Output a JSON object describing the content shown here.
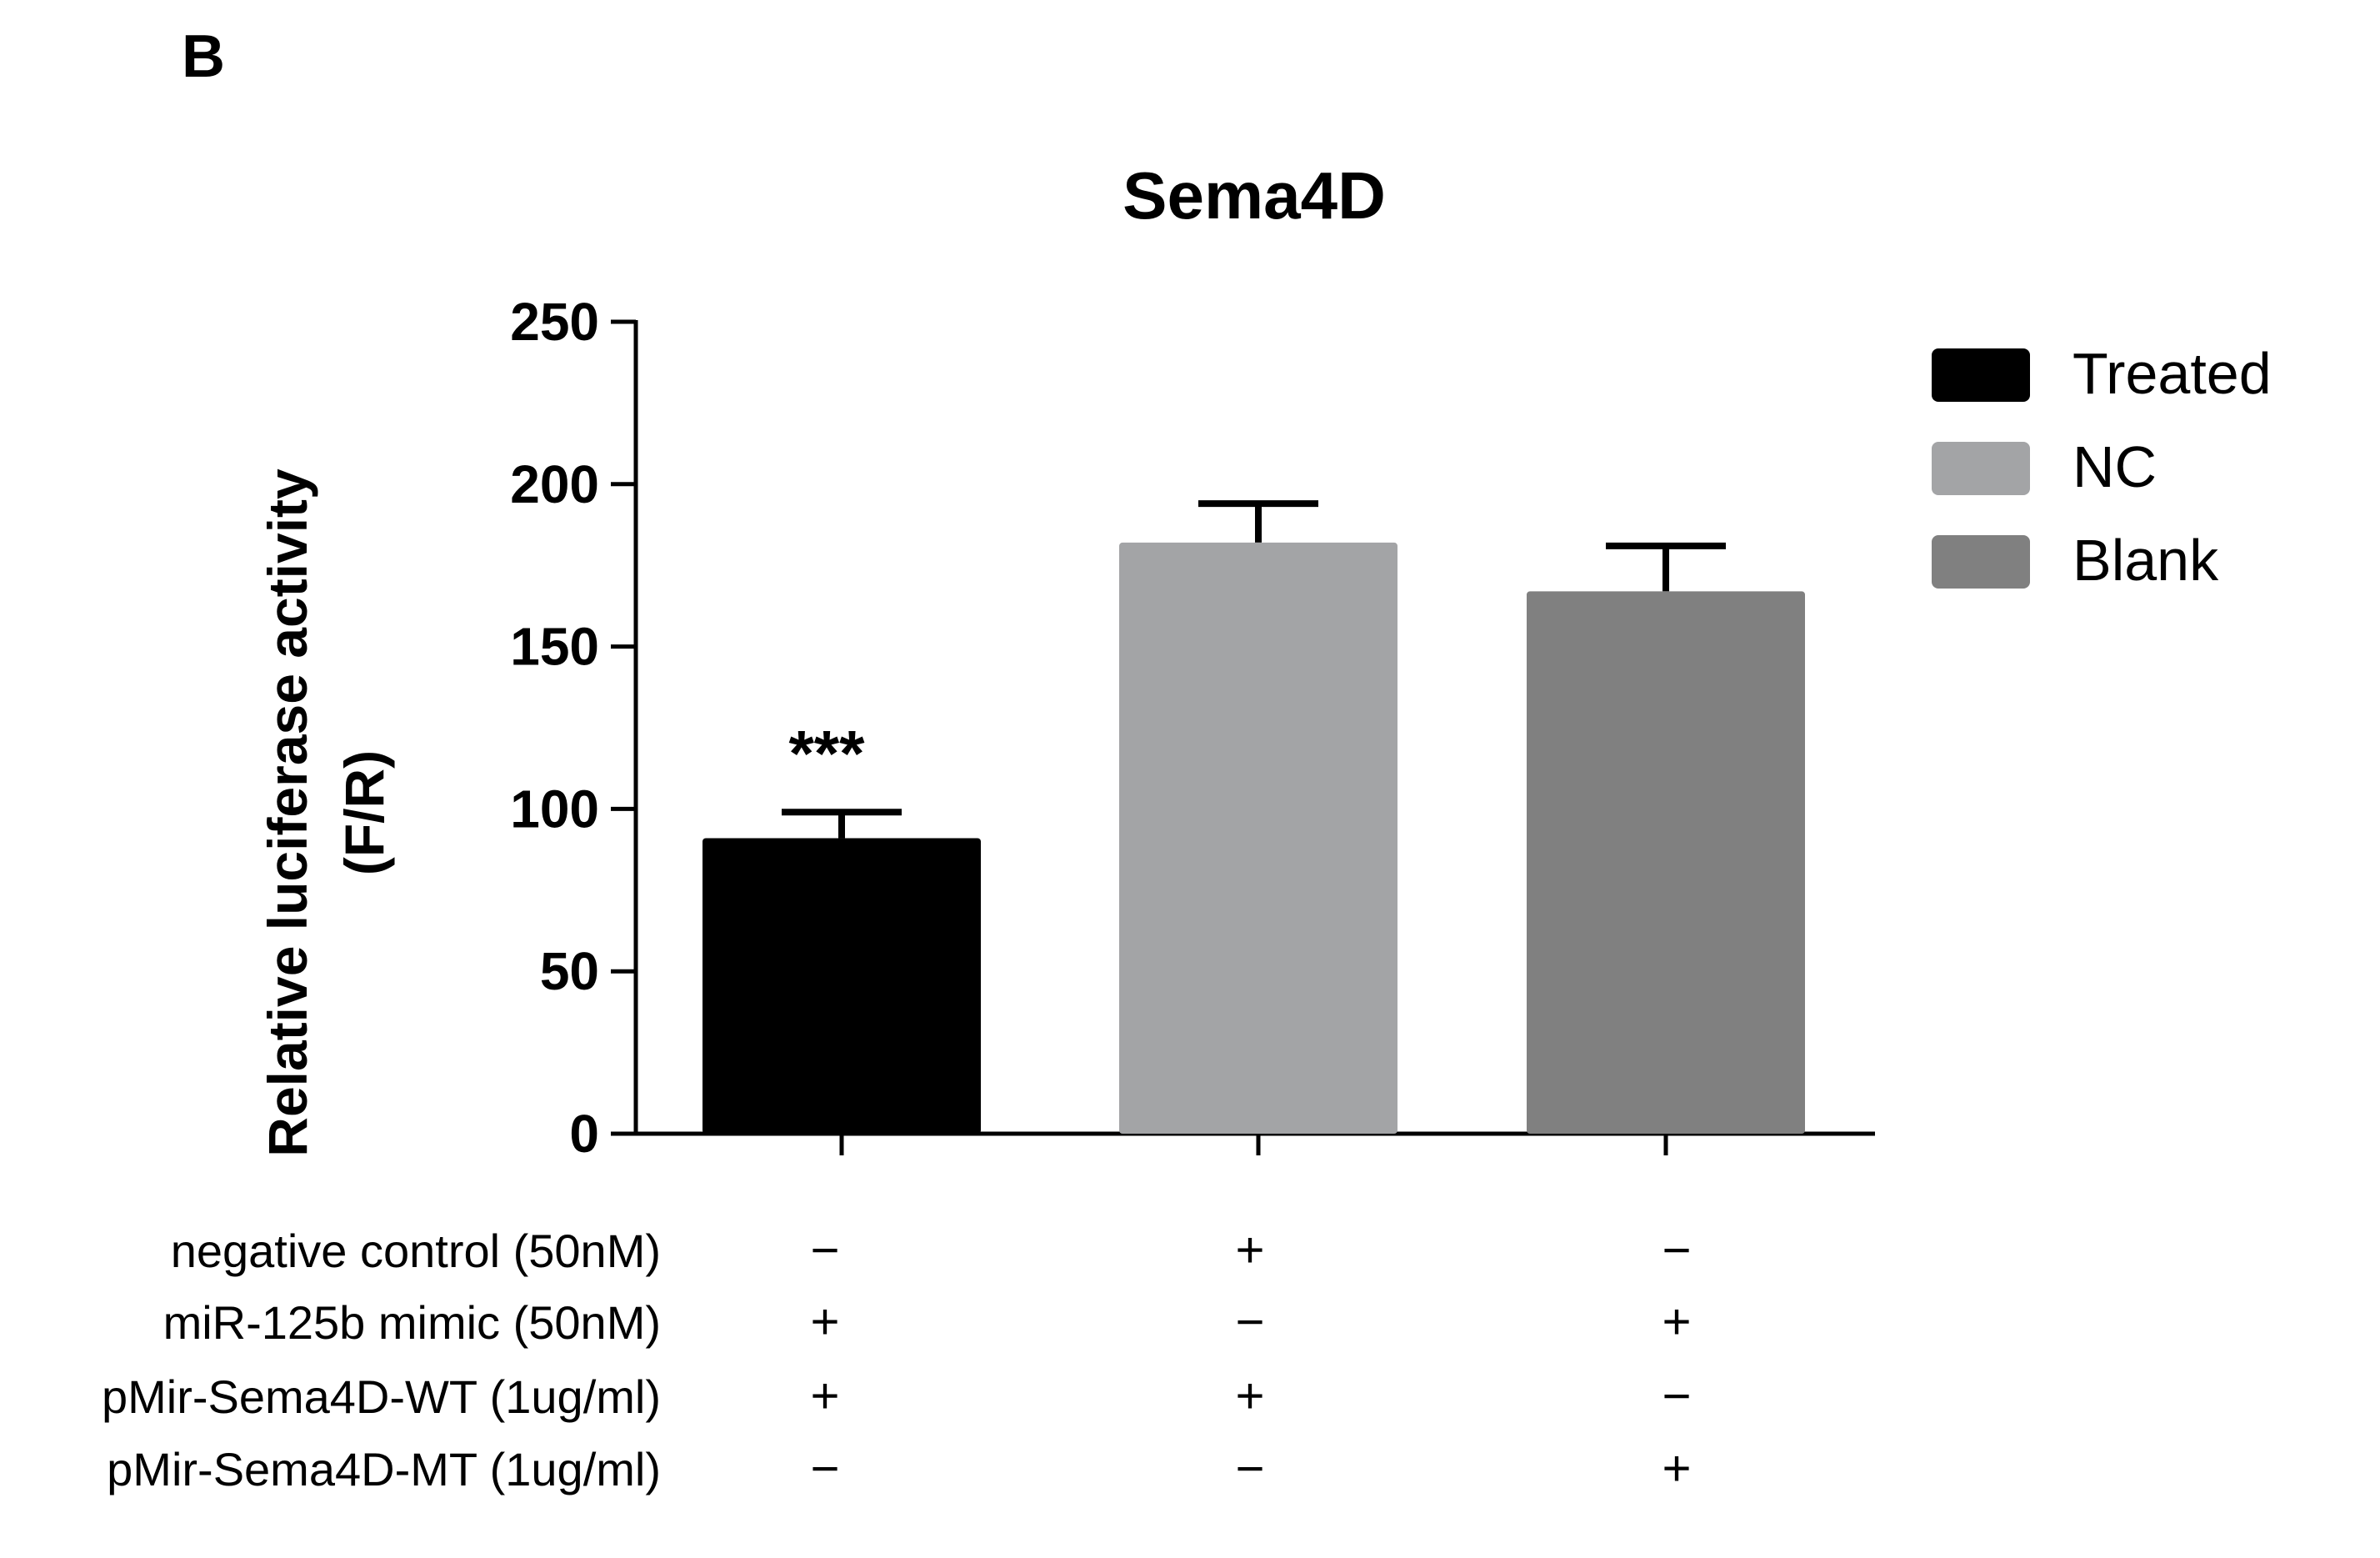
{
  "panel_label": "B",
  "chart_data": {
    "type": "bar",
    "title": "Sema4D",
    "ylabel_line1": "Relative luciferase activity",
    "ylabel_line2": "(F/R)",
    "xlabel": "",
    "ylim": [
      0,
      250
    ],
    "yticks": [
      0,
      50,
      100,
      150,
      200,
      250
    ],
    "categories": [
      "Treated",
      "NC",
      "Blank"
    ],
    "values": [
      91,
      182,
      167
    ],
    "errors": [
      8,
      12,
      14
    ],
    "colors": [
      "#000000",
      "#a3a4a6",
      "#808080"
    ],
    "annotations": [
      "***",
      "",
      ""
    ],
    "legend": {
      "placement": "top-right",
      "entries": [
        {
          "label": "Treated",
          "color": "#000000"
        },
        {
          "label": "NC",
          "color": "#a3a4a6"
        },
        {
          "label": "Blank",
          "color": "#808080"
        }
      ]
    },
    "condition_table": {
      "rows": [
        {
          "label": "negative control (50nM)",
          "signs": [
            "−",
            "+",
            "−"
          ]
        },
        {
          "label": "miR-125b mimic (50nM)",
          "signs": [
            "+",
            "−",
            "+"
          ]
        },
        {
          "label": "pMir-Sema4D-WT (1ug/ml)",
          "signs": [
            "+",
            "+",
            "−"
          ]
        },
        {
          "label": "pMir-Sema4D-MT (1ug/ml)",
          "signs": [
            "−",
            "−",
            "+"
          ]
        }
      ]
    }
  }
}
